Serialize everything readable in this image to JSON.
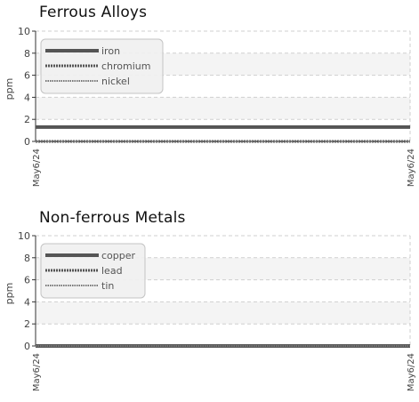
{
  "chart_data": [
    {
      "type": "line",
      "title": "Ferrous Alloys",
      "ylabel": "ppm",
      "ylim": [
        0,
        10
      ],
      "yticks": [
        0,
        2,
        4,
        6,
        8,
        10
      ],
      "x_tick_labels": [
        "May6/24",
        "May6/24"
      ],
      "legend_position": "top-left",
      "grid": true,
      "series": [
        {
          "name": "iron",
          "style": "solid",
          "color": "#555555",
          "values": [
            1.3,
            1.3
          ]
        },
        {
          "name": "chromium",
          "style": "dotted",
          "color": "#555555",
          "values": [
            0,
            0
          ]
        },
        {
          "name": "nickel",
          "style": "dotted-light",
          "color": "#777777",
          "values": [
            0,
            0
          ]
        }
      ]
    },
    {
      "type": "line",
      "title": "Non-ferrous Metals",
      "ylabel": "ppm",
      "ylim": [
        0,
        10
      ],
      "yticks": [
        0,
        2,
        4,
        6,
        8,
        10
      ],
      "x_tick_labels": [
        "May6/24",
        "May6/24"
      ],
      "legend_position": "top-left",
      "grid": true,
      "series": [
        {
          "name": "copper",
          "style": "solid",
          "color": "#555555",
          "values": [
            0,
            0
          ]
        },
        {
          "name": "lead",
          "style": "dotted",
          "color": "#555555",
          "values": [
            0,
            0
          ]
        },
        {
          "name": "tin",
          "style": "dotted-light",
          "color": "#777777",
          "values": [
            0,
            0
          ]
        }
      ]
    }
  ]
}
